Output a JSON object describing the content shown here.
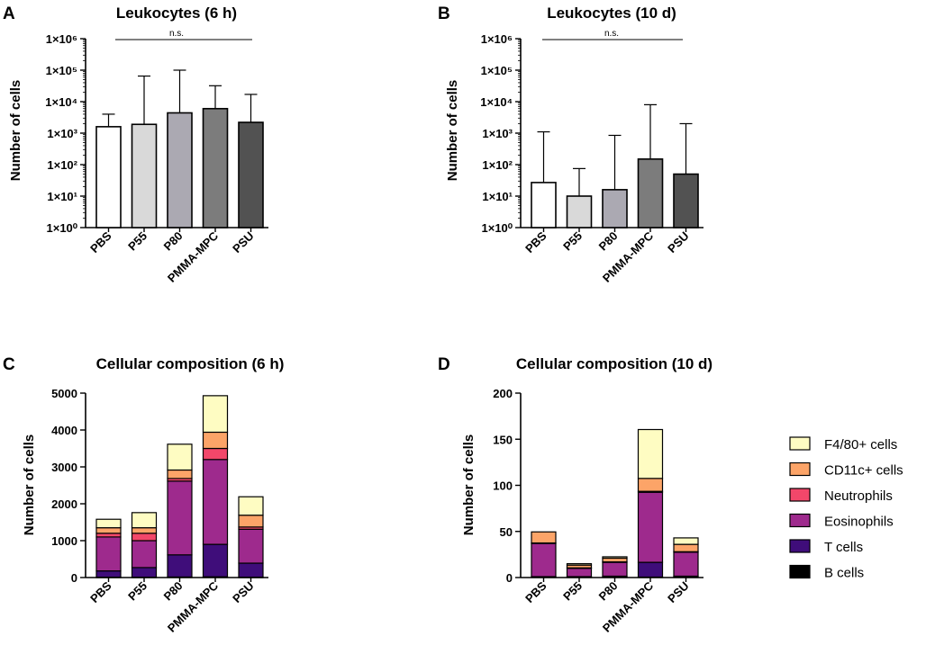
{
  "figure": {
    "panels": [
      {
        "id": "A",
        "label": "A"
      },
      {
        "id": "B",
        "label": "B"
      },
      {
        "id": "C",
        "label": "C"
      },
      {
        "id": "D",
        "label": "D"
      }
    ]
  },
  "colors": {
    "B cells": "#000000",
    "T cells": "#3f0d7a",
    "Eosinophils": "#9e2a8d",
    "Neutrophils": "#f2476a",
    "CD11c+ cells": "#fca468",
    "F4/80+ cells": "#fefcc2",
    "bar_fills_log": [
      "#ffffff",
      "#d9d9d9",
      "#aba9b2",
      "#7c7c7c",
      "#525252"
    ]
  },
  "chart_data": [
    {
      "panel": "A",
      "type": "bar",
      "scale": "log",
      "title": "Leukocytes (6 h)",
      "xlabel": "",
      "ylabel": "Number of cells",
      "categories": [
        "PBS",
        "P55",
        "P80",
        "PMMA-MPC",
        "PSU"
      ],
      "values": [
        1600,
        1900,
        4400,
        6000,
        2200
      ],
      "error_upper": [
        4000,
        65000,
        100000,
        32000,
        17000
      ],
      "ylim": [
        1,
        1000000
      ],
      "yticks": [
        1,
        10,
        100,
        1000,
        10000,
        100000,
        1000000
      ],
      "ytick_labels": [
        "1×10⁰",
        "1×10¹",
        "1×10²",
        "1×10³",
        "1×10⁴",
        "1×10⁵",
        "1×10⁶"
      ],
      "annotation": "n.s."
    },
    {
      "panel": "B",
      "type": "bar",
      "scale": "log",
      "title": "Leukocytes (10 d)",
      "xlabel": "",
      "ylabel": "Number of cells",
      "categories": [
        "PBS",
        "P55",
        "P80",
        "PMMA-MPC",
        "PSU"
      ],
      "values": [
        27,
        10,
        16,
        150,
        50
      ],
      "error_upper": [
        1100,
        75,
        850,
        8000,
        2000
      ],
      "ylim": [
        1,
        1000000
      ],
      "yticks": [
        1,
        10,
        100,
        1000,
        10000,
        100000,
        1000000
      ],
      "ytick_labels": [
        "1×10⁰",
        "1×10¹",
        "1×10²",
        "1×10³",
        "1×10⁴",
        "1×10⁵",
        "1×10⁶"
      ],
      "annotation": "n.s."
    },
    {
      "panel": "C",
      "type": "bar",
      "stacked": true,
      "title": "Cellular composition (6 h)",
      "xlabel": "",
      "ylabel": "Number of cells",
      "categories": [
        "PBS",
        "P55",
        "P80",
        "PMMA-MPC",
        "PSU"
      ],
      "ylim": [
        0,
        5000
      ],
      "yticks": [
        0,
        1000,
        2000,
        3000,
        4000,
        5000
      ],
      "series": [
        {
          "name": "B cells",
          "values": [
            10,
            10,
            15,
            20,
            10
          ]
        },
        {
          "name": "T cells",
          "values": [
            170,
            260,
            600,
            880,
            380
          ]
        },
        {
          "name": "Eosinophils",
          "values": [
            920,
            730,
            2000,
            2300,
            920
          ]
        },
        {
          "name": "Neutrophils",
          "values": [
            100,
            200,
            70,
            300,
            60
          ]
        },
        {
          "name": "CD11c+ cells",
          "values": [
            150,
            150,
            230,
            440,
            320
          ]
        },
        {
          "name": "F4/80+ cells",
          "values": [
            230,
            410,
            700,
            990,
            500
          ]
        }
      ]
    },
    {
      "panel": "D",
      "type": "bar",
      "stacked": true,
      "title": "Cellular composition (10 d)",
      "xlabel": "",
      "ylabel": "Number of cells",
      "categories": [
        "PBS",
        "P55",
        "P80",
        "PMMA-MPC",
        "PSU"
      ],
      "ylim": [
        0,
        200
      ],
      "yticks": [
        0,
        50,
        100,
        150,
        200
      ],
      "series": [
        {
          "name": "B cells",
          "values": [
            0.5,
            0.5,
            0.5,
            0.5,
            0.5
          ]
        },
        {
          "name": "T cells",
          "values": [
            0.5,
            0.5,
            1,
            16,
            1
          ]
        },
        {
          "name": "Eosinophils",
          "values": [
            36,
            9,
            15,
            76,
            26
          ]
        },
        {
          "name": "Neutrophils",
          "values": [
            0.5,
            0.5,
            0.5,
            1,
            0.5
          ]
        },
        {
          "name": "CD11c+ cells",
          "values": [
            12,
            3,
            4,
            14,
            8
          ]
        },
        {
          "name": "F4/80+ cells",
          "values": [
            0,
            1.5,
            1.5,
            53,
            7
          ]
        }
      ]
    }
  ],
  "legend": {
    "items": [
      "F4/80+ cells",
      "CD11c+ cells",
      "Neutrophils",
      "Eosinophils",
      "T cells",
      "B cells"
    ]
  }
}
